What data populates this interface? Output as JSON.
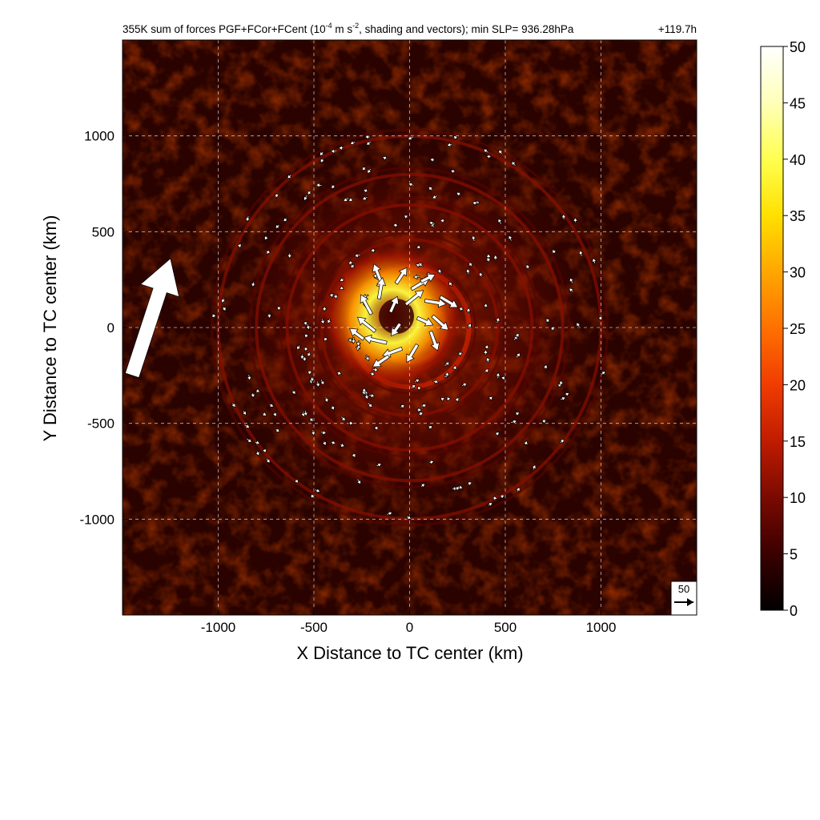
{
  "chart_data": {
    "type": "heatmap",
    "title": "355K sum of forces PGF+FCor+FCent (10",
    "title_exponent": "-4",
    "title_unit_mid": " m s",
    "title_unit_exp": "-2",
    "title_rest": ", shading and vectors); min SLP= 936.28hPa",
    "time_label": "+119.7h",
    "xlabel": "X Distance to TC center (km)",
    "ylabel": "Y Distance to TC center (km)",
    "xlim": [
      -1500,
      1500
    ],
    "ylim": [
      -1500,
      1500
    ],
    "xticks": [
      -1000,
      -500,
      0,
      500,
      1000
    ],
    "yticks": [
      -1000,
      -500,
      0,
      500,
      1000
    ],
    "grid": true,
    "colorbar": {
      "min": 0,
      "max": 50,
      "ticks": [
        0,
        5,
        10,
        15,
        20,
        25,
        30,
        35,
        40,
        45,
        50
      ],
      "colormap": [
        "#000000",
        "#3a0000",
        "#7a0a00",
        "#b81800",
        "#e23000",
        "#ff6a00",
        "#ffa200",
        "#ffd800",
        "#ffff40",
        "#ffffb0",
        "#ffffff"
      ]
    },
    "reference_vector": {
      "label": "50",
      "value": 50
    },
    "large_arrow": {
      "x_tail": -1450,
      "y_tail": -250,
      "x_head": -1250,
      "y_head": 360
    },
    "ring_radii_km": [
      180,
      310,
      460,
      640,
      800,
      1000
    ],
    "vectors": [
      {
        "x": -150,
        "y": 240,
        "u": -4,
        "v": 10
      },
      {
        "x": -70,
        "y": 230,
        "u": 6,
        "v": 9
      },
      {
        "x": 10,
        "y": 200,
        "u": 10,
        "v": 6
      },
      {
        "x": 80,
        "y": 140,
        "u": 12,
        "v": -2
      },
      {
        "x": 120,
        "y": 60,
        "u": 9,
        "v": -8
      },
      {
        "x": 110,
        "y": -20,
        "u": 4,
        "v": -11
      },
      {
        "x": 40,
        "y": -90,
        "u": -6,
        "v": -10
      },
      {
        "x": -40,
        "y": -110,
        "u": -11,
        "v": -4
      },
      {
        "x": -120,
        "y": -80,
        "u": -13,
        "v": 3
      },
      {
        "x": -180,
        "y": -20,
        "u": -10,
        "v": 8
      },
      {
        "x": -200,
        "y": 70,
        "u": -6,
        "v": 11
      },
      {
        "x": -160,
        "y": 150,
        "u": 2,
        "v": 12
      },
      {
        "x": -20,
        "y": 120,
        "u": 10,
        "v": 8
      },
      {
        "x": 40,
        "y": 50,
        "u": 9,
        "v": -4
      },
      {
        "x": -50,
        "y": 20,
        "u": -5,
        "v": -7
      },
      {
        "x": -100,
        "y": 80,
        "u": 4,
        "v": 9
      },
      {
        "x": 60,
        "y": 240,
        "u": 8,
        "v": 4
      },
      {
        "x": 160,
        "y": 160,
        "u": 10,
        "v": -6
      },
      {
        "x": -240,
        "y": -60,
        "u": -8,
        "v": 6
      },
      {
        "x": -110,
        "y": -150,
        "u": -9,
        "v": -6
      }
    ],
    "small_vector_count": 220
  }
}
